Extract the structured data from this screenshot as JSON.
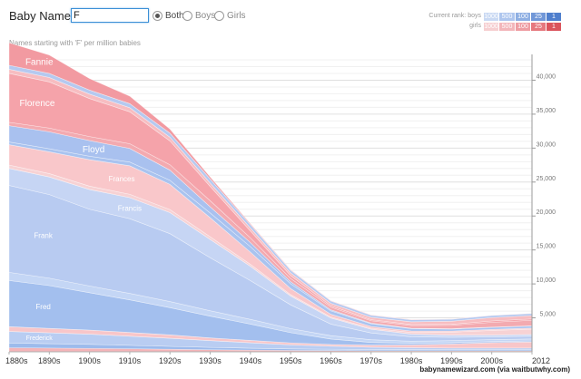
{
  "header": {
    "title": "Baby Name >",
    "search_value": "F",
    "radios": [
      {
        "label": "Both",
        "selected": true
      },
      {
        "label": "Boys",
        "selected": false
      },
      {
        "label": "Girls",
        "selected": false
      }
    ],
    "rank_legend": {
      "boys_label": "Current rank:  boys",
      "girls_label": "girls",
      "boxes": [
        "1000",
        "500",
        "100",
        "25",
        "1"
      ],
      "boys_colors": [
        "#c9d9f3",
        "#aec6ee",
        "#8eafe3",
        "#7097d8",
        "#4f7fcd"
      ],
      "girls_colors": [
        "#f6cfd1",
        "#f3b6ba",
        "#ee9da2",
        "#e6787e",
        "#db545c"
      ]
    }
  },
  "subtitle": "Names starting with 'F' per million babies",
  "credit": "babynamewizard.com (via waitbutwhy.com)",
  "chart_data": {
    "type": "area",
    "stacked": true,
    "x": [
      "1880s",
      "1890s",
      "1900s",
      "1910s",
      "1920s",
      "1930s",
      "1940s",
      "1950s",
      "1960s",
      "1970s",
      "1980s",
      "1990s",
      "2000s",
      "2012"
    ],
    "y_axis": {
      "ticks": [
        5000,
        10000,
        15000,
        20000,
        25000,
        30000,
        35000,
        40000
      ],
      "tick_labels": [
        "5,000",
        "10,000",
        "15,000",
        "20,000",
        "25,000",
        "30,000",
        "35,000",
        "40,000"
      ],
      "range": [
        0,
        43800
      ],
      "position": "right"
    },
    "grid": true,
    "series": [
      {
        "name": "",
        "gender": "girl",
        "color": "#f4b4b8",
        "values": [
          600,
          550,
          500,
          450,
          380,
          300,
          250,
          200,
          180,
          150,
          150,
          150,
          150,
          150
        ]
      },
      {
        "name": "",
        "gender": "boy",
        "color": "#9dbbec",
        "values": [
          700,
          650,
          600,
          500,
          420,
          350,
          280,
          220,
          200,
          180,
          160,
          150,
          150,
          150
        ]
      },
      {
        "name": "Frederick",
        "gender": "boy",
        "color": "#b9cdf2",
        "values": [
          1700,
          1600,
          1500,
          1350,
          1200,
          1000,
          800,
          600,
          450,
          350,
          300,
          250,
          250,
          250
        ]
      },
      {
        "name": "",
        "gender": "girl",
        "color": "#f8c6c9",
        "values": [
          700,
          650,
          600,
          550,
          500,
          400,
          350,
          300,
          250,
          300,
          400,
          600,
          800,
          900
        ]
      },
      {
        "name": "Fred",
        "gender": "boy",
        "color": "#a3bfee",
        "values": [
          6800,
          6300,
          5500,
          4800,
          4000,
          3200,
          2400,
          1500,
          800,
          400,
          250,
          200,
          150,
          150
        ]
      },
      {
        "name": "",
        "gender": "boy",
        "color": "#c4d6f5",
        "values": [
          1200,
          1100,
          1000,
          950,
          900,
          800,
          700,
          600,
          500,
          400,
          300,
          300,
          300,
          300
        ]
      },
      {
        "name": "Frank",
        "gender": "boy",
        "color": "#b8cbf1",
        "values": [
          12800,
          12300,
          11300,
          11000,
          10000,
          7800,
          5700,
          3500,
          1700,
          1000,
          650,
          500,
          400,
          400
        ]
      },
      {
        "name": "Francis",
        "gender": "boy",
        "color": "#c6d5f4",
        "values": [
          2500,
          2600,
          2900,
          3100,
          3100,
          2700,
          2100,
          1300,
          900,
          550,
          400,
          300,
          250,
          250
        ]
      },
      {
        "name": "",
        "gender": "girl",
        "color": "#f7d2d4",
        "values": [
          500,
          500,
          500,
          500,
          450,
          400,
          300,
          200,
          150,
          150,
          250,
          450,
          700,
          800
        ]
      },
      {
        "name": "Frances",
        "gender": "girl",
        "color": "#f9c7ca",
        "values": [
          3000,
          3200,
          3900,
          4200,
          3700,
          2800,
          1800,
          900,
          400,
          250,
          200,
          150,
          150,
          150
        ]
      },
      {
        "name": "",
        "gender": "boy",
        "color": "#a9c3ef",
        "values": [
          400,
          450,
          500,
          550,
          600,
          700,
          800,
          700,
          500,
          400,
          350,
          300,
          300,
          300
        ]
      },
      {
        "name": "Floyd",
        "gender": "boy",
        "color": "#a9c1ef",
        "values": [
          2400,
          2500,
          2300,
          2000,
          1500,
          900,
          600,
          300,
          150,
          100,
          60,
          50,
          40,
          40
        ]
      },
      {
        "name": "",
        "gender": "girl",
        "color": "#f3aab0",
        "values": [
          500,
          550,
          600,
          700,
          800,
          900,
          700,
          500,
          400,
          350,
          400,
          500,
          700,
          800
        ]
      },
      {
        "name": "Florence",
        "gender": "girl",
        "color": "#f5a3aa",
        "values": [
          7200,
          6800,
          5600,
          4700,
          3500,
          2100,
          1000,
          400,
          200,
          150,
          150,
          150,
          200,
          200
        ]
      },
      {
        "name": "",
        "gender": "girl",
        "color": "#f7bdc1",
        "values": [
          600,
          650,
          650,
          600,
          550,
          500,
          450,
          400,
          350,
          350,
          400,
          450,
          500,
          500
        ]
      },
      {
        "name": "",
        "gender": "boy",
        "color": "#b5c9f0",
        "values": [
          600,
          600,
          600,
          600,
          600,
          600,
          500,
          400,
          350,
          300,
          300,
          300,
          300,
          300
        ]
      },
      {
        "name": "Fannie",
        "gender": "girl",
        "color": "#f29aa1",
        "values": [
          3300,
          2700,
          1700,
          1100,
          600,
          300,
          150,
          80,
          50,
          40,
          30,
          20,
          20,
          20
        ]
      }
    ]
  }
}
